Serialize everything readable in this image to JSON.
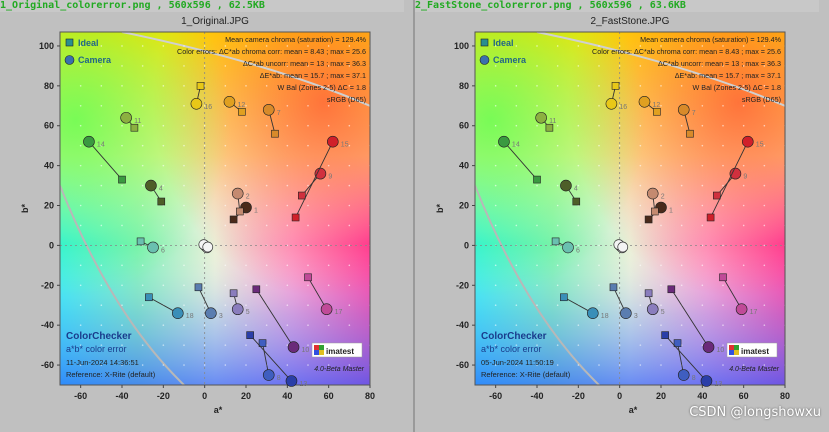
{
  "colors": {
    "series_ideal": "#2a8f8f",
    "series_camera": "#3a6fae",
    "axis_text": "#222222",
    "filename_text": "#22aa22"
  },
  "watermark": "CSDN @longshowxu",
  "chart_data": [
    {
      "type": "scatter",
      "file_label": "1_Original_colorerror.png , 560x596 , 62.5KB",
      "title": "1_Original.JPG",
      "xlabel": "a*",
      "ylabel": "b*",
      "xlim": [
        -70,
        80
      ],
      "ylim": [
        -70,
        107
      ],
      "xticks": [
        -60,
        -40,
        -20,
        0,
        20,
        40,
        60,
        80
      ],
      "yticks": [
        -60,
        -40,
        -20,
        0,
        20,
        40,
        60,
        80,
        100
      ],
      "legend": [
        "Ideal",
        "Camera"
      ],
      "legend_position": "top-left",
      "stats": [
        "Mean camera chroma (saturation) = 129.4%",
        "Color errors: ΔC*ab chroma corr:  mean = 8.43 ;  max = 25.6",
        "ΔC*ab uncorr:  mean = 13 ;  max = 36.3",
        "ΔE*ab:  mean = 15.7 ;  max = 37.1",
        "W Bal (Zones 2-5) ΔC = 1.8",
        "sRGB (D65)"
      ],
      "bottom_text": {
        "title": "ColorChecker",
        "subtitle": "a*b* color error",
        "date": "11-Jun-2024 14:36:51",
        "reference": "Reference: X-Rite (default)",
        "version": "4.0-Beta  Master",
        "logo": "imatest"
      },
      "patches": [
        {
          "id": "1",
          "ideal": [
            14,
            13
          ],
          "camera": [
            20,
            19
          ],
          "color": "#4a2a1a"
        },
        {
          "id": "2",
          "ideal": [
            17,
            17
          ],
          "camera": [
            16,
            26
          ],
          "color": "#c48a70"
        },
        {
          "id": "3",
          "ideal": [
            -3,
            -21
          ],
          "camera": [
            3,
            -34
          ],
          "color": "#5a7db0"
        },
        {
          "id": "4",
          "ideal": [
            -21,
            22
          ],
          "camera": [
            -26,
            30
          ],
          "color": "#4e5e28"
        },
        {
          "id": "5",
          "ideal": [
            14,
            -24
          ],
          "camera": [
            16,
            -32
          ],
          "color": "#8a7dbd"
        },
        {
          "id": "6",
          "ideal": [
            -31,
            2
          ],
          "camera": [
            -25,
            -1
          ],
          "color": "#6ac0b0"
        },
        {
          "id": "7",
          "ideal": [
            34,
            56
          ],
          "camera": [
            31,
            68
          ],
          "color": "#d88a2a"
        },
        {
          "id": "8",
          "ideal": [
            28,
            -49
          ],
          "camera": [
            31,
            -65
          ],
          "color": "#3f5ec0"
        },
        {
          "id": "9",
          "ideal": [
            47,
            25
          ],
          "camera": [
            56,
            36
          ],
          "color": "#d0303e"
        },
        {
          "id": "10",
          "ideal": [
            25,
            -22
          ],
          "camera": [
            43,
            -51
          ],
          "color": "#6a2a7a"
        },
        {
          "id": "11",
          "ideal": [
            -34,
            59
          ],
          "camera": [
            -38,
            64
          ],
          "color": "#8cb040"
        },
        {
          "id": "12",
          "ideal": [
            18,
            67
          ],
          "camera": [
            12,
            72
          ],
          "color": "#e0a020"
        },
        {
          "id": "13",
          "ideal": [
            22,
            -45
          ],
          "camera": [
            42,
            -68
          ],
          "color": "#2a3ea8"
        },
        {
          "id": "14",
          "ideal": [
            -40,
            33
          ],
          "camera": [
            -56,
            52
          ],
          "color": "#3a9a40"
        },
        {
          "id": "15",
          "ideal": [
            44,
            14
          ],
          "camera": [
            62,
            52
          ],
          "color": "#d0202a"
        },
        {
          "id": "16",
          "ideal": [
            -2,
            80
          ],
          "camera": [
            -4,
            71
          ],
          "color": "#e8c818"
        },
        {
          "id": "17",
          "ideal": [
            50,
            -16
          ],
          "camera": [
            59,
            -32
          ],
          "color": "#c04a98"
        },
        {
          "id": "18",
          "ideal": [
            -27,
            -26
          ],
          "camera": [
            -13,
            -34
          ],
          "color": "#3a8fb8"
        }
      ]
    },
    {
      "type": "scatter",
      "file_label": "2_FastStone_colorerror.png , 560x596 , 63.6KB",
      "title": "2_FastStone.JPG",
      "xlabel": "a*",
      "ylabel": "b*",
      "xlim": [
        -70,
        80
      ],
      "ylim": [
        -70,
        107
      ],
      "xticks": [
        -60,
        -40,
        -20,
        0,
        20,
        40,
        60,
        80
      ],
      "yticks": [
        -60,
        -40,
        -20,
        0,
        20,
        40,
        60,
        80,
        100
      ],
      "legend": [
        "Ideal",
        "Camera"
      ],
      "legend_position": "top-left",
      "stats": [
        "Mean camera chroma (saturation) = 129.4%",
        "Color errors: ΔC*ab chroma corr:  mean = 8.43 ;  max = 25.6",
        "ΔC*ab uncorr:  mean = 13 ;  max = 36.3",
        "ΔE*ab:  mean = 15.7 ;  max = 37.1",
        "W Bal (Zones 2-5) ΔC = 1.8",
        "sRGB (D65)"
      ],
      "bottom_text": {
        "title": "ColorChecker",
        "subtitle": "a*b* color error",
        "date": "05-Jun-2024 11:50:19",
        "reference": "Reference: X-Rite (default)",
        "version": "4.0-Beta  Master",
        "logo": "imatest"
      },
      "patches": [
        {
          "id": "1",
          "ideal": [
            14,
            13
          ],
          "camera": [
            20,
            19
          ],
          "color": "#4a2a1a"
        },
        {
          "id": "2",
          "ideal": [
            17,
            17
          ],
          "camera": [
            16,
            26
          ],
          "color": "#c48a70"
        },
        {
          "id": "3",
          "ideal": [
            -3,
            -21
          ],
          "camera": [
            3,
            -34
          ],
          "color": "#5a7db0"
        },
        {
          "id": "4",
          "ideal": [
            -21,
            22
          ],
          "camera": [
            -26,
            30
          ],
          "color": "#4e5e28"
        },
        {
          "id": "5",
          "ideal": [
            14,
            -24
          ],
          "camera": [
            16,
            -32
          ],
          "color": "#8a7dbd"
        },
        {
          "id": "6",
          "ideal": [
            -31,
            2
          ],
          "camera": [
            -25,
            -1
          ],
          "color": "#6ac0b0"
        },
        {
          "id": "7",
          "ideal": [
            34,
            56
          ],
          "camera": [
            31,
            68
          ],
          "color": "#d88a2a"
        },
        {
          "id": "8",
          "ideal": [
            28,
            -49
          ],
          "camera": [
            31,
            -65
          ],
          "color": "#3f5ec0"
        },
        {
          "id": "9",
          "ideal": [
            47,
            25
          ],
          "camera": [
            56,
            36
          ],
          "color": "#d0303e"
        },
        {
          "id": "10",
          "ideal": [
            25,
            -22
          ],
          "camera": [
            43,
            -51
          ],
          "color": "#6a2a7a"
        },
        {
          "id": "11",
          "ideal": [
            -34,
            59
          ],
          "camera": [
            -38,
            64
          ],
          "color": "#8cb040"
        },
        {
          "id": "12",
          "ideal": [
            18,
            67
          ],
          "camera": [
            12,
            72
          ],
          "color": "#e0a020"
        },
        {
          "id": "13",
          "ideal": [
            22,
            -45
          ],
          "camera": [
            42,
            -68
          ],
          "color": "#2a3ea8"
        },
        {
          "id": "14",
          "ideal": [
            -40,
            33
          ],
          "camera": [
            -56,
            52
          ],
          "color": "#3a9a40"
        },
        {
          "id": "15",
          "ideal": [
            44,
            14
          ],
          "camera": [
            62,
            52
          ],
          "color": "#d0202a"
        },
        {
          "id": "16",
          "ideal": [
            -2,
            80
          ],
          "camera": [
            -4,
            71
          ],
          "color": "#e8c818"
        },
        {
          "id": "17",
          "ideal": [
            50,
            -16
          ],
          "camera": [
            59,
            -32
          ],
          "color": "#c04a98"
        },
        {
          "id": "18",
          "ideal": [
            -27,
            -26
          ],
          "camera": [
            -13,
            -34
          ],
          "color": "#3a8fb8"
        }
      ]
    }
  ]
}
